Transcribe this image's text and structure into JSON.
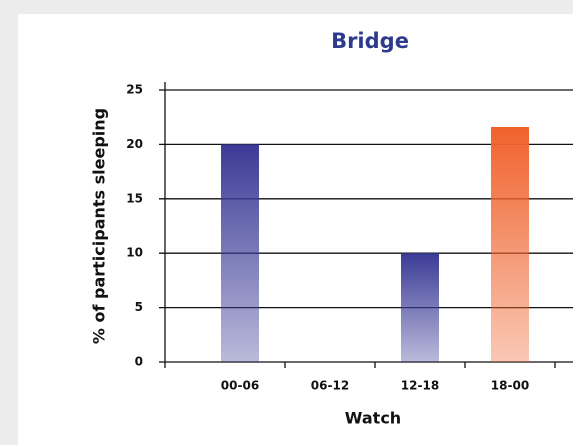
{
  "chart_data": {
    "type": "bar",
    "title": "Bridge",
    "x_label": "Watch",
    "y_label": "% of participants sleeping",
    "categories": [
      "00-06",
      "06-12",
      "12-18",
      "18-00"
    ],
    "values": [
      20,
      0,
      10,
      21.6
    ],
    "colors": [
      "#3b3b97",
      "#3b3b97",
      "#3b3b97",
      "#f0622c"
    ],
    "ylim": [
      0,
      25
    ],
    "yticks": [
      0,
      5,
      10,
      15,
      20,
      25
    ],
    "grid": true
  }
}
